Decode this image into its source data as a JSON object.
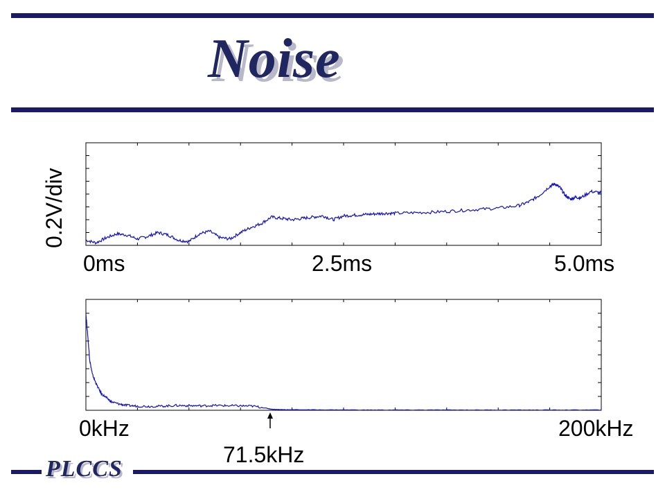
{
  "slide": {
    "title": "Noise",
    "footer_logo": "PLCCS",
    "colors": {
      "rule": "#1a1a66",
      "trace": "#1010c0",
      "title": "#1f2660"
    }
  },
  "chart_data": [
    {
      "type": "line",
      "title": "",
      "ylabel": "0.2V/div",
      "x_tick_labels": [
        "0ms",
        "2.5ms",
        "5.0ms"
      ],
      "xlim": [
        0,
        5.0
      ],
      "x_units": "ms",
      "y_divisions": 8,
      "x_divisions": 10,
      "series": [
        {
          "x": [
            0.0,
            0.1,
            0.2,
            0.3,
            0.4,
            0.5,
            0.6,
            0.7,
            0.8,
            0.9,
            1.0,
            1.1,
            1.2,
            1.3,
            1.4,
            1.5,
            1.6,
            1.7,
            1.8,
            1.9,
            2.0,
            2.1,
            2.2,
            2.3,
            2.4,
            2.5,
            2.6,
            2.7,
            2.8,
            2.9,
            3.0,
            3.2,
            3.4,
            3.6,
            3.8,
            4.0,
            4.2,
            4.3,
            4.4,
            4.5,
            4.55,
            4.6,
            4.65,
            4.7,
            4.75,
            4.8,
            4.9,
            5.0
          ],
          "values": [
            0.4,
            0.2,
            0.6,
            0.9,
            0.8,
            0.5,
            0.7,
            1.0,
            0.8,
            0.4,
            0.3,
            0.9,
            1.1,
            0.6,
            0.5,
            1.0,
            1.4,
            1.7,
            2.2,
            2.1,
            2.0,
            2.1,
            2.2,
            2.3,
            2.0,
            2.3,
            2.35,
            2.4,
            2.45,
            2.5,
            2.5,
            2.55,
            2.6,
            2.7,
            2.8,
            2.9,
            3.1,
            3.4,
            3.9,
            4.6,
            4.8,
            4.5,
            3.9,
            3.6,
            3.75,
            3.7,
            4.2,
            4.1
          ]
        }
      ]
    },
    {
      "type": "line",
      "title": "",
      "x_tick_labels": [
        "0kHz",
        "200kHz"
      ],
      "xlim": [
        0,
        200
      ],
      "x_units": "kHz",
      "annotation": {
        "text": "71.5kHz",
        "x": 71.5
      },
      "y_divisions": 8,
      "x_divisions": 10,
      "series": [
        {
          "x": [
            0,
            0.8,
            1.5,
            2.5,
            4,
            6,
            8,
            10,
            13,
            16,
            20,
            25,
            30,
            35,
            40,
            45,
            50,
            55,
            60,
            65,
            70,
            72,
            75,
            80,
            90,
            100,
            110,
            120,
            130,
            140,
            150,
            160,
            170,
            180,
            190,
            200
          ],
          "values": [
            7.0,
            5.2,
            3.6,
            2.6,
            1.9,
            1.2,
            0.9,
            0.6,
            0.45,
            0.35,
            0.3,
            0.28,
            0.3,
            0.35,
            0.33,
            0.32,
            0.35,
            0.33,
            0.32,
            0.3,
            0.15,
            0.08,
            0.05,
            0.04,
            0.03,
            0.03,
            0.02,
            0.02,
            0.02,
            0.02,
            0.02,
            0.02,
            0.02,
            0.02,
            0.02,
            0.02
          ]
        }
      ]
    }
  ]
}
